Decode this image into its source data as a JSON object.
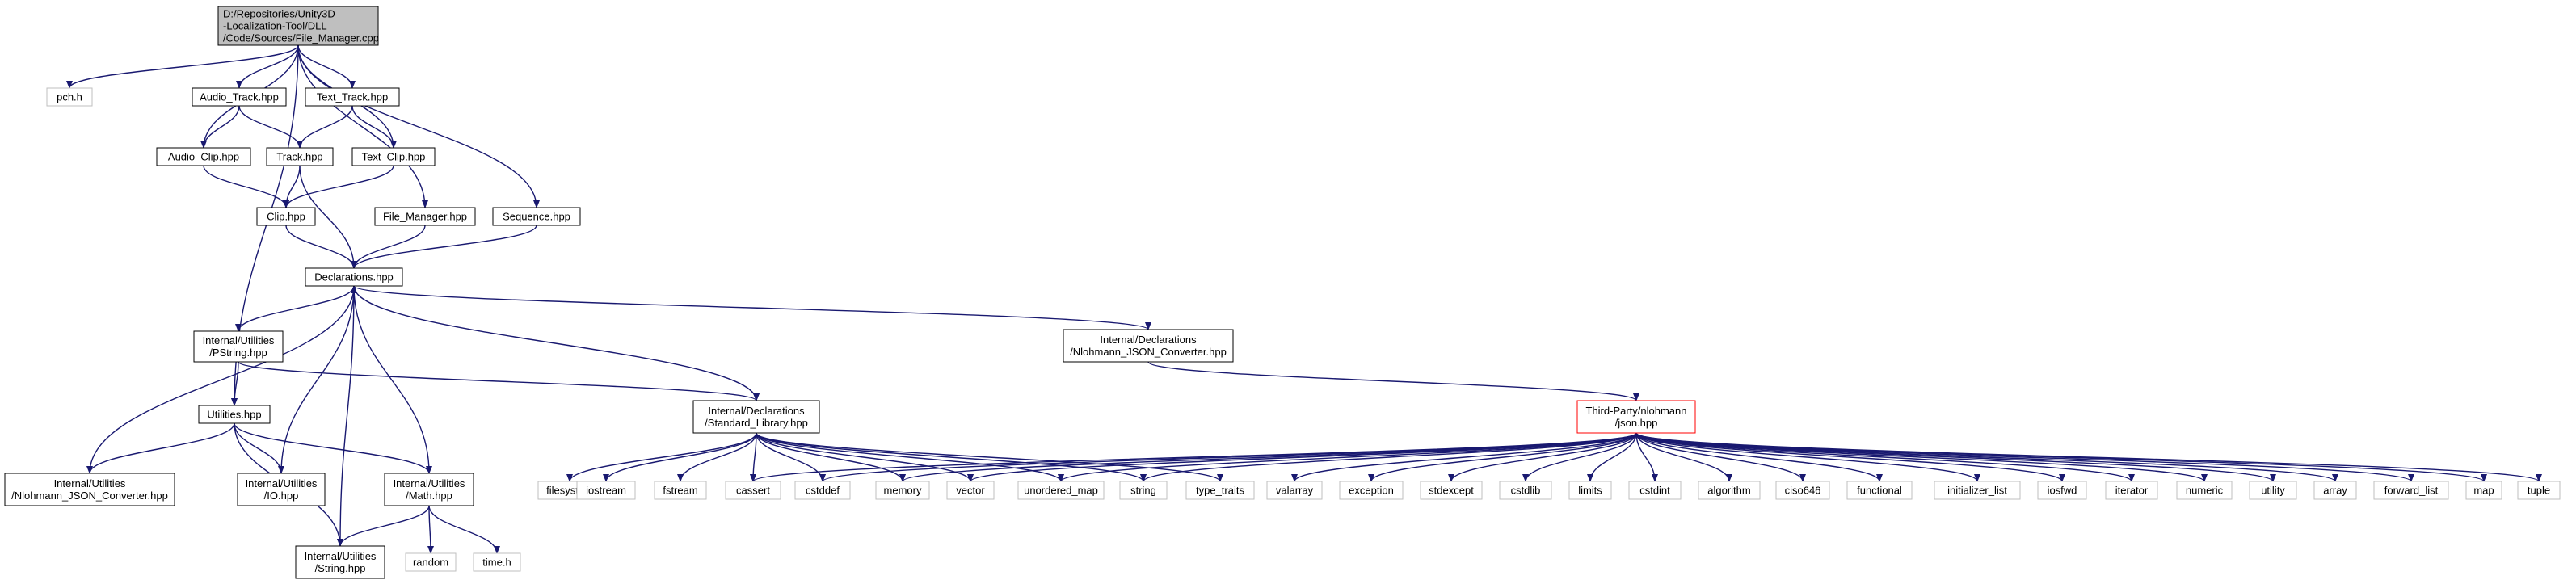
{
  "graph": {
    "colors": {
      "edge": "#191970",
      "node_border": "#000000",
      "node_border_external": "#bfbfbf",
      "node_border_truncated": "#ff0000",
      "node_fill": "#ffffff",
      "root_fill": "#bfbfbf",
      "text": "#000000",
      "external_text": "#404040"
    },
    "nodes": [
      {
        "id": "root",
        "lines": [
          "D:/Repositories/Unity3D",
          "-Localization-Tool/DLL",
          "/Code/Sources/File_Manager.cpp"
        ],
        "style": "root"
      },
      {
        "id": "pch",
        "lines": [
          "pch.h"
        ],
        "style": "external"
      },
      {
        "id": "audio_track",
        "lines": [
          "Audio_Track.hpp"
        ],
        "style": "normal"
      },
      {
        "id": "text_track",
        "lines": [
          "Text_Track.hpp"
        ],
        "style": "normal"
      },
      {
        "id": "audio_clip",
        "lines": [
          "Audio_Clip.hpp"
        ],
        "style": "normal"
      },
      {
        "id": "track",
        "lines": [
          "Track.hpp"
        ],
        "style": "normal"
      },
      {
        "id": "text_clip",
        "lines": [
          "Text_Clip.hpp"
        ],
        "style": "normal"
      },
      {
        "id": "clip",
        "lines": [
          "Clip.hpp"
        ],
        "style": "normal"
      },
      {
        "id": "file_manager",
        "lines": [
          "File_Manager.hpp"
        ],
        "style": "normal"
      },
      {
        "id": "sequence",
        "lines": [
          "Sequence.hpp"
        ],
        "style": "normal"
      },
      {
        "id": "declarations",
        "lines": [
          "Declarations.hpp"
        ],
        "style": "normal"
      },
      {
        "id": "pstring",
        "lines": [
          "Internal/Utilities",
          "/PString.hpp"
        ],
        "style": "normal"
      },
      {
        "id": "nlohmann_decl",
        "lines": [
          "Internal/Declarations",
          "/Nlohmann_JSON_Converter.hpp"
        ],
        "style": "normal"
      },
      {
        "id": "utilities",
        "lines": [
          "Utilities.hpp"
        ],
        "style": "normal"
      },
      {
        "id": "std_lib",
        "lines": [
          "Internal/Declarations",
          "/Standard_Library.hpp"
        ],
        "style": "normal"
      },
      {
        "id": "json",
        "lines": [
          "Third-Party/nlohmann",
          "/json.hpp"
        ],
        "style": "truncated"
      },
      {
        "id": "nlohmann_util",
        "lines": [
          "Internal/Utilities",
          "/Nlohmann_JSON_Converter.hpp"
        ],
        "style": "normal"
      },
      {
        "id": "io",
        "lines": [
          "Internal/Utilities",
          "/IO.hpp"
        ],
        "style": "normal"
      },
      {
        "id": "math",
        "lines": [
          "Internal/Utilities",
          "/Math.hpp"
        ],
        "style": "normal"
      },
      {
        "id": "string_hpp",
        "lines": [
          "Internal/Utilities",
          "/String.hpp"
        ],
        "style": "normal"
      },
      {
        "id": "random",
        "lines": [
          "random"
        ],
        "style": "external"
      },
      {
        "id": "time",
        "lines": [
          "time.h"
        ],
        "style": "external"
      },
      {
        "id": "filesystem",
        "lines": [
          "filesystem"
        ],
        "style": "external"
      },
      {
        "id": "iostream",
        "lines": [
          "iostream"
        ],
        "style": "external"
      },
      {
        "id": "fstream",
        "lines": [
          "fstream"
        ],
        "style": "external"
      },
      {
        "id": "cassert",
        "lines": [
          "cassert"
        ],
        "style": "external"
      },
      {
        "id": "cstddef",
        "lines": [
          "cstddef"
        ],
        "style": "external"
      },
      {
        "id": "memory",
        "lines": [
          "memory"
        ],
        "style": "external"
      },
      {
        "id": "vector",
        "lines": [
          "vector"
        ],
        "style": "external"
      },
      {
        "id": "unordered_map",
        "lines": [
          "unordered_map"
        ],
        "style": "external"
      },
      {
        "id": "string",
        "lines": [
          "string"
        ],
        "style": "external"
      },
      {
        "id": "type_traits",
        "lines": [
          "type_traits"
        ],
        "style": "external"
      },
      {
        "id": "valarray",
        "lines": [
          "valarray"
        ],
        "style": "external"
      },
      {
        "id": "exception",
        "lines": [
          "exception"
        ],
        "style": "external"
      },
      {
        "id": "stdexcept",
        "lines": [
          "stdexcept"
        ],
        "style": "external"
      },
      {
        "id": "cstdlib",
        "lines": [
          "cstdlib"
        ],
        "style": "external"
      },
      {
        "id": "limits",
        "lines": [
          "limits"
        ],
        "style": "external"
      },
      {
        "id": "cstdint",
        "lines": [
          "cstdint"
        ],
        "style": "external"
      },
      {
        "id": "algorithm",
        "lines": [
          "algorithm"
        ],
        "style": "external"
      },
      {
        "id": "ciso646",
        "lines": [
          "ciso646"
        ],
        "style": "external"
      },
      {
        "id": "functional",
        "lines": [
          "functional"
        ],
        "style": "external"
      },
      {
        "id": "initializer_list",
        "lines": [
          "initializer_list"
        ],
        "style": "external"
      },
      {
        "id": "iosfwd",
        "lines": [
          "iosfwd"
        ],
        "style": "external"
      },
      {
        "id": "iterator",
        "lines": [
          "iterator"
        ],
        "style": "external"
      },
      {
        "id": "numeric",
        "lines": [
          "numeric"
        ],
        "style": "external"
      },
      {
        "id": "utility",
        "lines": [
          "utility"
        ],
        "style": "external"
      },
      {
        "id": "array",
        "lines": [
          "array"
        ],
        "style": "external"
      },
      {
        "id": "forward_list",
        "lines": [
          "forward_list"
        ],
        "style": "external"
      },
      {
        "id": "map",
        "lines": [
          "map"
        ],
        "style": "external"
      },
      {
        "id": "tuple",
        "lines": [
          "tuple"
        ],
        "style": "external"
      }
    ],
    "edges": [
      [
        "root",
        "pch"
      ],
      [
        "root",
        "audio_track"
      ],
      [
        "root",
        "text_track"
      ],
      [
        "root",
        "audio_clip"
      ],
      [
        "root",
        "text_clip"
      ],
      [
        "root",
        "file_manager"
      ],
      [
        "root",
        "sequence"
      ],
      [
        "root",
        "utilities"
      ],
      [
        "audio_track",
        "audio_clip"
      ],
      [
        "audio_track",
        "track"
      ],
      [
        "text_track",
        "track"
      ],
      [
        "text_track",
        "text_clip"
      ],
      [
        "audio_clip",
        "clip"
      ],
      [
        "text_clip",
        "clip"
      ],
      [
        "track",
        "clip"
      ],
      [
        "track",
        "declarations"
      ],
      [
        "clip",
        "declarations"
      ],
      [
        "file_manager",
        "declarations"
      ],
      [
        "sequence",
        "declarations"
      ],
      [
        "declarations",
        "pstring"
      ],
      [
        "declarations",
        "nlohmann_decl"
      ],
      [
        "declarations",
        "std_lib"
      ],
      [
        "pstring",
        "utilities"
      ],
      [
        "pstring",
        "std_lib"
      ],
      [
        "nlohmann_decl",
        "json"
      ],
      [
        "utilities",
        "nlohmann_util"
      ],
      [
        "utilities",
        "io"
      ],
      [
        "utilities",
        "math"
      ],
      [
        "utilities",
        "string_hpp"
      ],
      [
        "nlohmann_util",
        "declarations"
      ],
      [
        "io",
        "declarations"
      ],
      [
        "math",
        "declarations"
      ],
      [
        "string_hpp",
        "declarations"
      ],
      [
        "math",
        "string_hpp"
      ],
      [
        "math",
        "random"
      ],
      [
        "math",
        "time"
      ],
      [
        "std_lib",
        "filesystem"
      ],
      [
        "std_lib",
        "iostream"
      ],
      [
        "std_lib",
        "fstream"
      ],
      [
        "std_lib",
        "cassert"
      ],
      [
        "std_lib",
        "cstddef"
      ],
      [
        "std_lib",
        "memory"
      ],
      [
        "std_lib",
        "vector"
      ],
      [
        "std_lib",
        "unordered_map"
      ],
      [
        "std_lib",
        "string"
      ],
      [
        "std_lib",
        "type_traits"
      ],
      [
        "json",
        "cassert"
      ],
      [
        "json",
        "cstddef"
      ],
      [
        "json",
        "memory"
      ],
      [
        "json",
        "vector"
      ],
      [
        "json",
        "unordered_map"
      ],
      [
        "json",
        "string"
      ],
      [
        "json",
        "valarray"
      ],
      [
        "json",
        "exception"
      ],
      [
        "json",
        "stdexcept"
      ],
      [
        "json",
        "cstdlib"
      ],
      [
        "json",
        "limits"
      ],
      [
        "json",
        "cstdint"
      ],
      [
        "json",
        "algorithm"
      ],
      [
        "json",
        "ciso646"
      ],
      [
        "json",
        "functional"
      ],
      [
        "json",
        "initializer_list"
      ],
      [
        "json",
        "iosfwd"
      ],
      [
        "json",
        "iterator"
      ],
      [
        "json",
        "numeric"
      ],
      [
        "json",
        "utility"
      ],
      [
        "json",
        "array"
      ],
      [
        "json",
        "forward_list"
      ],
      [
        "json",
        "map"
      ],
      [
        "json",
        "tuple"
      ]
    ]
  }
}
